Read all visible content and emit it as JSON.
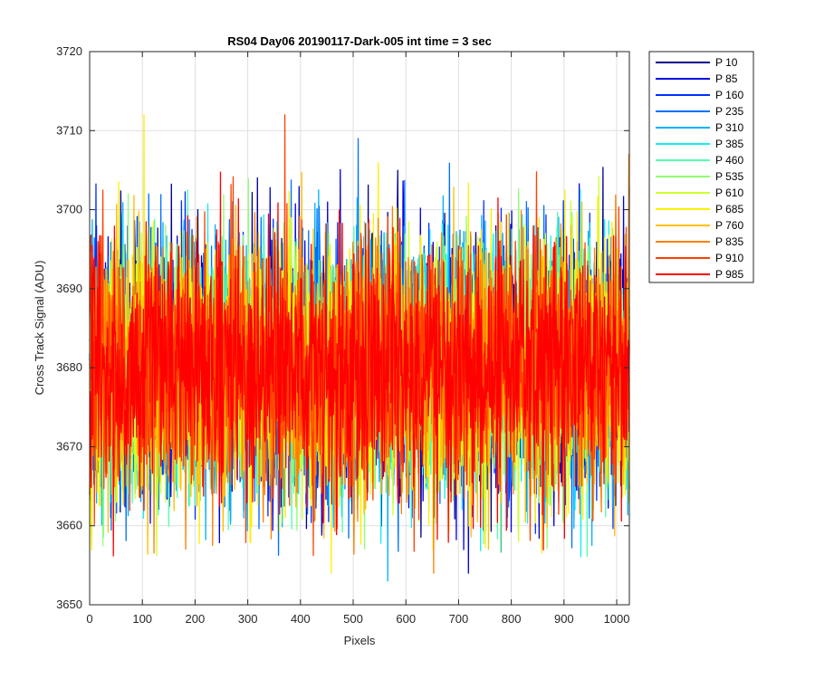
{
  "chart_data": {
    "type": "line",
    "title": "RS04 Day06 20190117-Dark-005 int time = 3 sec",
    "xlabel": "Pixels",
    "ylabel": "Cross Track Signal (ADU)",
    "xlim": [
      0,
      1024
    ],
    "ylim": [
      3650,
      3720
    ],
    "xticks": [
      0,
      100,
      200,
      300,
      400,
      500,
      600,
      700,
      800,
      900,
      1000
    ],
    "yticks": [
      3650,
      3660,
      3670,
      3680,
      3690,
      3700,
      3710,
      3720
    ],
    "grid": true,
    "legend_position": "outside-right",
    "signal_summary": {
      "mean": 3680,
      "typical_min": 3663,
      "typical_max": 3697,
      "point_count_per_series": 1024,
      "notable_spikes": [
        {
          "series": "P 685",
          "x": 103,
          "y": 3712
        },
        {
          "series": "P 910",
          "x": 370,
          "y": 3712
        },
        {
          "series": "P 235",
          "x": 509,
          "y": 3709
        },
        {
          "series": "P 310",
          "x": 565,
          "y": 3653
        },
        {
          "series": "P 685",
          "x": 458,
          "y": 3654
        },
        {
          "series": "P 835",
          "x": 652,
          "y": 3654
        },
        {
          "series": "P 85",
          "x": 718,
          "y": 3654
        },
        {
          "series": "P 835",
          "x": 1022,
          "y": 3707
        }
      ]
    },
    "series": [
      {
        "name": "P 10",
        "color": "#00008f"
      },
      {
        "name": "P 85",
        "color": "#0000df"
      },
      {
        "name": "P 160",
        "color": "#0030ff"
      },
      {
        "name": "P 235",
        "color": "#0070ff"
      },
      {
        "name": "P 310",
        "color": "#00b0ff"
      },
      {
        "name": "P 385",
        "color": "#10efef"
      },
      {
        "name": "P 460",
        "color": "#50ffaf"
      },
      {
        "name": "P 535",
        "color": "#8fff70"
      },
      {
        "name": "P 610",
        "color": "#cfff30"
      },
      {
        "name": "P 685",
        "color": "#ffef00"
      },
      {
        "name": "P 760",
        "color": "#ffbf00"
      },
      {
        "name": "P 835",
        "color": "#ff8000"
      },
      {
        "name": "P 910",
        "color": "#ff4000"
      },
      {
        "name": "P 985",
        "color": "#ff0000"
      }
    ]
  }
}
